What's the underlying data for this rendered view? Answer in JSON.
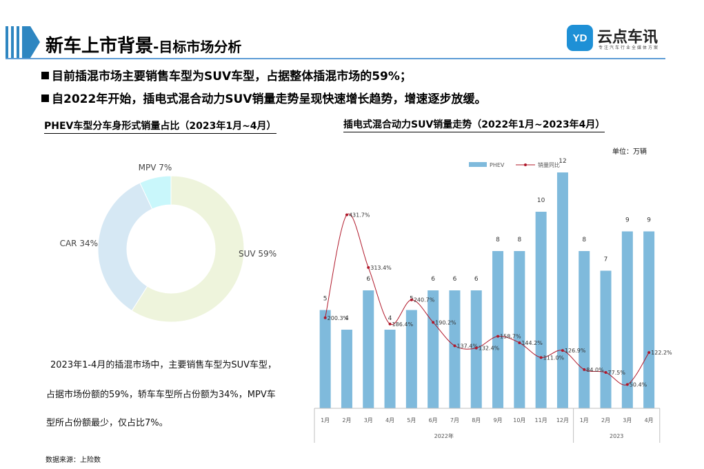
{
  "header": {
    "title_main": "新车上市背景",
    "title_sub": "-目标市场分析"
  },
  "logo": {
    "mark": "YD",
    "name": "云点车讯",
    "tagline": "专注汽车行业全媒体方案"
  },
  "bullets": [
    "目前插混市场主要销售车型为SUV车型，占据整体插混市场的59%；",
    "自2022年开始，插电式混合动力SUV销量走势呈现快速增长趋势，增速逐步放缓。"
  ],
  "left_panel": {
    "heading": "PHEV车型分车身形式销量占比（2023年1月~4月）",
    "text_lines": [
      "2023年1-4月的插混市场中，主要销售车型为SUV车型，",
      "占据市场份额的59%，轿车车型所占份额为34%，MPV车",
      "型所占份额最少，仅占比7%。"
    ]
  },
  "right_panel": {
    "heading": "插电式混合动力SUV销量走势（2022年1月~2023年4月）",
    "unit": "单位：万辆"
  },
  "source": "数据来源：上险数",
  "colors": {
    "accent_blue": "#2e86c1",
    "bar": "#7fbadc",
    "line": "#b0182a",
    "suv": "#eef4dc",
    "car": "#d6e8f4",
    "mpv": "#c9f7fb"
  },
  "chart_data": [
    {
      "type": "pie",
      "title": "PHEV车型分车身形式销量占比（2023年1月~4月）",
      "labels": [
        "SUV",
        "CAR",
        "MPV"
      ],
      "values": [
        59,
        34,
        7
      ],
      "slice_labels": [
        "SUV 59%",
        "CAR 34%",
        "MPV 7%"
      ],
      "donut": true
    },
    {
      "type": "bar",
      "title": "插电式混合动力SUV销量走势（2022年1月~2023年4月）",
      "unit": "单位：万辆",
      "categories": [
        "1月",
        "2月",
        "3月",
        "4月",
        "5月",
        "6月",
        "7月",
        "8月",
        "9月",
        "10月",
        "11月",
        "12月",
        "1月",
        "2月",
        "3月",
        "4月"
      ],
      "groups": [
        {
          "label": "2022年",
          "count": 12
        },
        {
          "label": "2023",
          "count": 4
        }
      ],
      "series": [
        {
          "name": "PHEV",
          "kind": "bar",
          "values": [
            5,
            4,
            6,
            4,
            5,
            6,
            6,
            6,
            8,
            8,
            10,
            12,
            8,
            7,
            9,
            9
          ],
          "labels": [
            "5",
            "4",
            "6",
            "4",
            "5",
            "6",
            "6",
            "6",
            "8",
            "8",
            "10",
            "12",
            "8",
            "7",
            "9",
            "9"
          ]
        },
        {
          "name": "销量同比",
          "kind": "line",
          "values": [
            200.3,
            431.7,
            313.4,
            186.4,
            240.7,
            190.2,
            137.4,
            132.4,
            158.7,
            144.2,
            111.0,
            126.9,
            84.0,
            77.5,
            50.4,
            122.2
          ],
          "labels": [
            "200.3%",
            "431.7%",
            "313.4%",
            "186.4%",
            "240.7%",
            "190.2%",
            "137.4%",
            "132.4%",
            "158.7%",
            "144.2%",
            "111.0%",
            "126.9%",
            "84.0%",
            "77.5%",
            "50.4%",
            "122.2%"
          ]
        }
      ],
      "legend": "top-center"
    }
  ]
}
